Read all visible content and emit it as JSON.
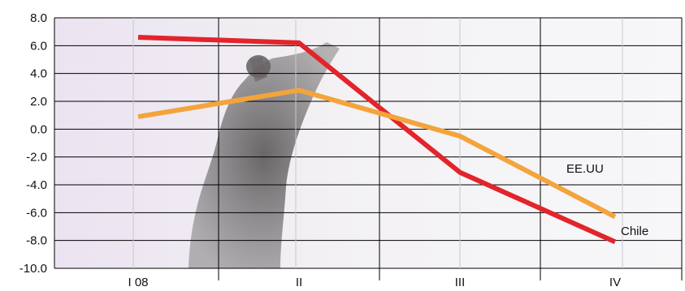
{
  "chart_data": {
    "type": "line",
    "categories": [
      "I 08",
      "II",
      "III",
      "IV"
    ],
    "ylim": [
      -10,
      8
    ],
    "y_ticks": [
      "8.0",
      "6.0",
      "4.0",
      "2.0",
      "0.0",
      "-2.0",
      "-4.0",
      "-6.0",
      "-8.0",
      "-10.0"
    ],
    "grid": true,
    "series": [
      {
        "name": "Chile",
        "color": "#e3242b",
        "values": [
          6.6,
          6.2,
          -3.1,
          -8.1
        ]
      },
      {
        "name": "EE.UU",
        "color": "#f3a43c",
        "values": [
          0.9,
          2.8,
          -0.5,
          -6.3
        ]
      }
    ],
    "x_tick_labels": [
      "I 08",
      "II",
      "III",
      "IV"
    ],
    "background": "faded photo of a man in a dark coat pushing against a wall (decorative)"
  }
}
